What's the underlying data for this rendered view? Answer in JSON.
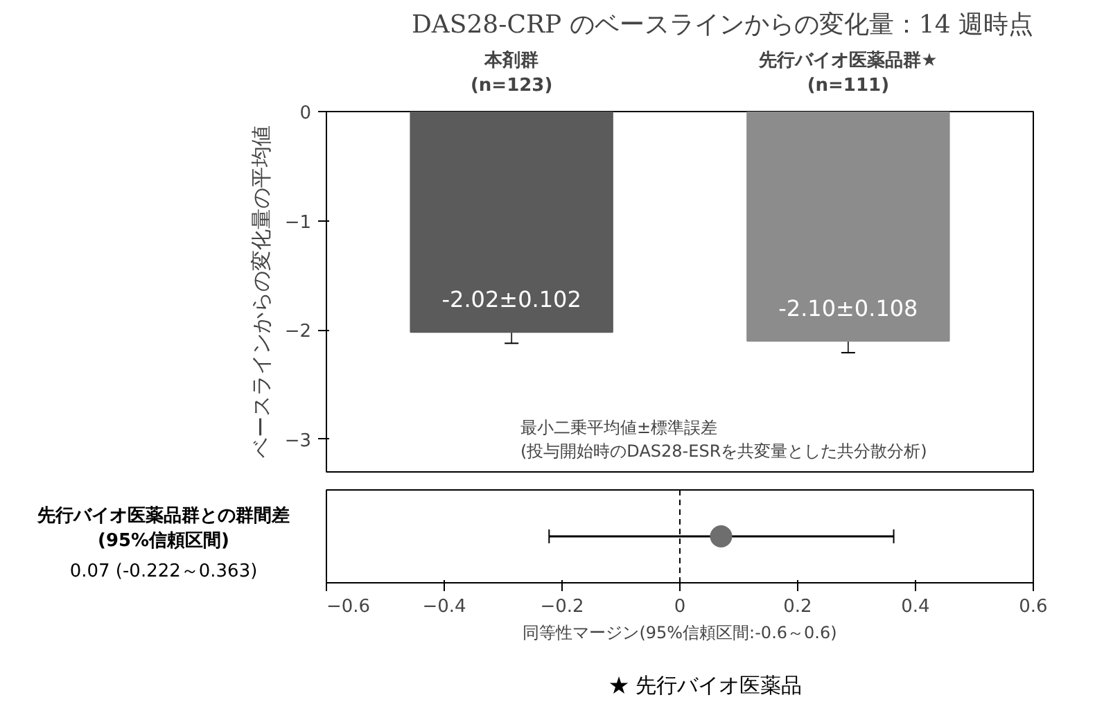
{
  "chart_data": [
    {
      "type": "bar",
      "title": "DAS28-CRP のベースラインからの変化量：14 週時点",
      "ylabel": "ベースラインからの変化量の平均値",
      "categories": [
        "本剤群\n(n=123)",
        "先行バイオ医薬品群★\n(n=111)"
      ],
      "values": [
        -2.02,
        -2.1
      ],
      "colors": [
        "#5b5b5b",
        "#8c8c8c"
      ],
      "errors": [
        0.102,
        0.108
      ],
      "value_labels": [
        "-2.02±0.102",
        "-2.10±0.108"
      ],
      "ylim": [
        -3.3,
        0
      ],
      "yticks": [
        0,
        -1,
        -2,
        -3
      ],
      "grid": false,
      "annotations": [
        "最小二乗平均値±標準誤差\n(投与開始時のDAS28-ESRを共変量とした共分散分析)"
      ]
    },
    {
      "type": "scatter",
      "orientation": "horizontal",
      "categories": [
        "先行バイオ医薬品群との群間差\n(95%信頼区間)"
      ],
      "values": [
        0.07
      ],
      "errors": [
        [
          -0.222,
          0.363
        ]
      ],
      "color": "#6e6e6e",
      "marker": "circle",
      "xlim": [
        -0.6,
        0.6
      ],
      "xticks": [
        -0.6,
        -0.4,
        -0.2,
        0,
        0.2,
        0.4,
        0.6
      ],
      "xlabel": "同等性マージン(95%信頼区間:-0.6～0.6)",
      "ref_lines": [
        {
          "axis": "x",
          "value": 0,
          "line_style": "dashed",
          "color": "#000000"
        }
      ],
      "grid": false,
      "annotations": [
        "0.07 (-0.222～0.363)",
        "★ 先行バイオ医薬品"
      ]
    }
  ]
}
